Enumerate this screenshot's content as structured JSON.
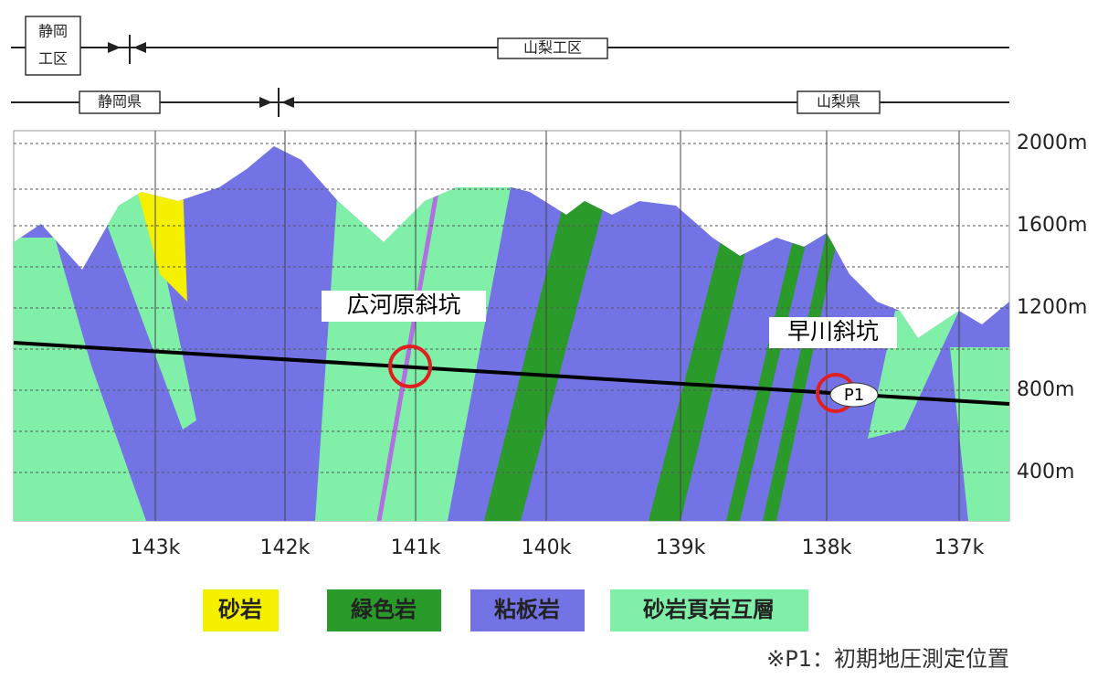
{
  "header": {
    "shizuoka_section": [
      "静岡",
      "工区"
    ],
    "yamanashi_section": "山梨工区",
    "shizuoka_pref": "静岡県",
    "yamanashi_pref": "山梨県"
  },
  "elevation_ticks": [
    "2000m",
    "1600m",
    "1200m",
    "800m",
    "400m"
  ],
  "distance_ticks": [
    "143k",
    "142k",
    "141k",
    "140k",
    "139k",
    "138k",
    "137k"
  ],
  "shafts": {
    "hirogawara": "広河原斜坑",
    "hayakawa": "早川斜坑",
    "point": "P1"
  },
  "legend": [
    "砂岩",
    "緑色岩",
    "粘板岩",
    "砂岩頁岩互層"
  ],
  "note": "※P1：初期地圧測定位置"
}
